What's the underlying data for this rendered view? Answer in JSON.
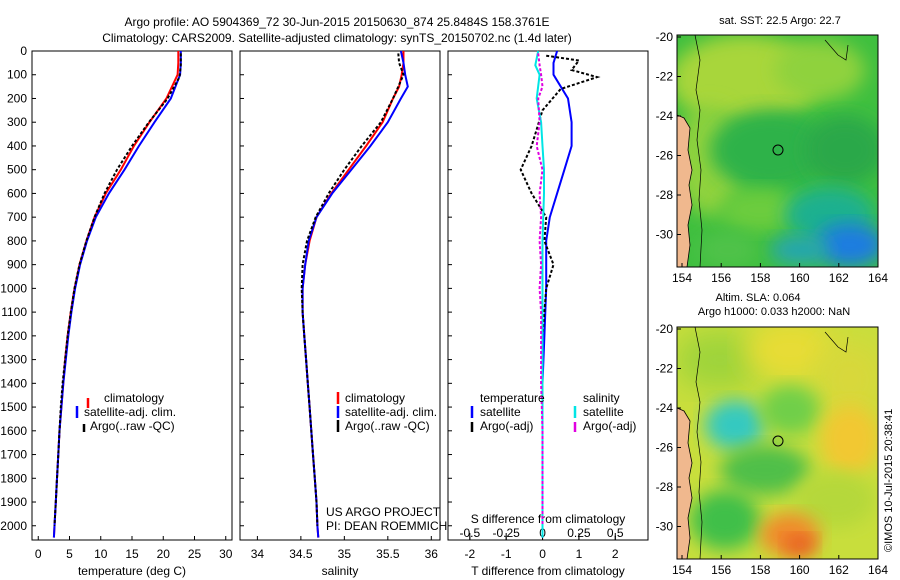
{
  "header": {
    "line1": "Argo profile: AO 5904369_72 30-Jun-2015 20150630_874 25.8484S 158.3761E",
    "line2": "Climatology: CARS2009. Satellite-adjusted climatology: synTS_20150702.nc (1.4d later)"
  },
  "colors": {
    "clim": "#ff0000",
    "sat": "#0000ff",
    "argo": "#000000",
    "sat_s": "#00e5e5",
    "argo_s": "#e000e0"
  },
  "chart_data": [
    {
      "type": "line",
      "id": "temperature",
      "xlabel": "temperature (deg C)",
      "ylabel": "",
      "xlim": [
        -1,
        31
      ],
      "ylim": [
        2060,
        0
      ],
      "xticks": [
        "0",
        "5",
        "10",
        "15",
        "20",
        "25",
        "30"
      ],
      "yticks": [
        "0",
        "100",
        "200",
        "300",
        "400",
        "500",
        "600",
        "700",
        "800",
        "900",
        "1000",
        "1100",
        "1200",
        "1300",
        "1400",
        "1500",
        "1600",
        "1700",
        "1800",
        "1900",
        "2000"
      ],
      "legend": [
        "climatology",
        "satellite-adj. clim.",
        "Argo(..raw -QC)"
      ],
      "series": [
        {
          "name": "climatology",
          "color_key": "clim",
          "points": [
            [
              22.4,
              0
            ],
            [
              22.4,
              50
            ],
            [
              22.3,
              100
            ],
            [
              20.5,
              200
            ],
            [
              17.8,
              300
            ],
            [
              15.3,
              400
            ],
            [
              13.2,
              500
            ],
            [
              10.8,
              600
            ],
            [
              9.0,
              700
            ],
            [
              7.7,
              800
            ],
            [
              6.6,
              900
            ],
            [
              5.8,
              1000
            ],
            [
              5.2,
              1100
            ],
            [
              4.7,
              1200
            ],
            [
              4.3,
              1300
            ],
            [
              4.0,
              1400
            ],
            [
              3.7,
              1500
            ],
            [
              3.4,
              1600
            ],
            [
              3.2,
              1700
            ],
            [
              3.0,
              1800
            ],
            [
              2.8,
              1900
            ],
            [
              2.6,
              2000
            ],
            [
              2.5,
              2050
            ]
          ]
        },
        {
          "name": "satellite-adj. clim.",
          "color_key": "sat",
          "points": [
            [
              22.8,
              0
            ],
            [
              22.8,
              50
            ],
            [
              22.7,
              100
            ],
            [
              21.2,
              200
            ],
            [
              18.6,
              300
            ],
            [
              16.1,
              400
            ],
            [
              13.8,
              500
            ],
            [
              11.3,
              600
            ],
            [
              9.2,
              700
            ],
            [
              7.8,
              800
            ],
            [
              6.7,
              900
            ],
            [
              5.9,
              1000
            ],
            [
              5.3,
              1100
            ],
            [
              4.8,
              1200
            ],
            [
              4.4,
              1300
            ],
            [
              4.0,
              1400
            ],
            [
              3.7,
              1500
            ],
            [
              3.4,
              1600
            ],
            [
              3.2,
              1700
            ],
            [
              3.0,
              1800
            ],
            [
              2.8,
              1900
            ],
            [
              2.6,
              2000
            ],
            [
              2.5,
              2050
            ]
          ]
        },
        {
          "name": "Argo(..raw -QC)",
          "color_key": "argo",
          "points": [
            [
              22.8,
              10
            ],
            [
              22.8,
              60
            ],
            [
              22.6,
              110
            ],
            [
              20.7,
              200
            ],
            [
              17.7,
              300
            ],
            [
              15.0,
              400
            ],
            [
              12.6,
              500
            ],
            [
              10.6,
              600
            ],
            [
              9.0,
              700
            ],
            [
              7.7,
              800
            ],
            [
              6.6,
              900
            ],
            [
              5.8,
              1000
            ],
            [
              5.2,
              1100
            ],
            [
              4.7,
              1200
            ],
            [
              4.3,
              1300
            ],
            [
              3.9,
              1400
            ],
            [
              3.6,
              1500
            ],
            [
              3.4,
              1600
            ],
            [
              3.2,
              1700
            ],
            [
              3.0,
              1800
            ],
            [
              2.8,
              1900
            ],
            [
              2.6,
              2000
            ]
          ]
        }
      ]
    },
    {
      "type": "line",
      "id": "salinity",
      "xlabel": "salinity",
      "xlim": [
        33.8,
        36.1
      ],
      "ylim": [
        2060,
        0
      ],
      "xticks": [
        "34",
        "34.5",
        "35",
        "35.5",
        "36"
      ],
      "legend": [
        "climatology",
        "satellite-adj. clim.",
        "Argo(..raw -QC)"
      ],
      "series": [
        {
          "name": "climatology",
          "color_key": "clim",
          "points": [
            [
              35.68,
              0
            ],
            [
              35.68,
              50
            ],
            [
              35.66,
              100
            ],
            [
              35.63,
              150
            ],
            [
              35.56,
              200
            ],
            [
              35.44,
              300
            ],
            [
              35.25,
              400
            ],
            [
              35.05,
              500
            ],
            [
              34.85,
              600
            ],
            [
              34.68,
              700
            ],
            [
              34.6,
              800
            ],
            [
              34.55,
              900
            ],
            [
              34.52,
              1000
            ],
            [
              34.52,
              1100
            ],
            [
              34.54,
              1200
            ],
            [
              34.56,
              1300
            ],
            [
              34.58,
              1400
            ],
            [
              34.6,
              1500
            ],
            [
              34.62,
              1600
            ],
            [
              34.64,
              1700
            ],
            [
              34.66,
              1800
            ],
            [
              34.68,
              1900
            ],
            [
              34.69,
              2000
            ],
            [
              34.7,
              2050
            ]
          ]
        },
        {
          "name": "satellite-adj. clim.",
          "color_key": "sat",
          "points": [
            [
              35.65,
              0
            ],
            [
              35.68,
              50
            ],
            [
              35.7,
              100
            ],
            [
              35.73,
              150
            ],
            [
              35.65,
              200
            ],
            [
              35.5,
              300
            ],
            [
              35.3,
              400
            ],
            [
              35.08,
              500
            ],
            [
              34.86,
              600
            ],
            [
              34.68,
              700
            ],
            [
              34.59,
              800
            ],
            [
              34.55,
              900
            ],
            [
              34.52,
              1000
            ],
            [
              34.52,
              1100
            ],
            [
              34.54,
              1200
            ],
            [
              34.56,
              1300
            ],
            [
              34.58,
              1400
            ],
            [
              34.6,
              1500
            ],
            [
              34.62,
              1600
            ],
            [
              34.64,
              1700
            ],
            [
              34.66,
              1800
            ],
            [
              34.68,
              1900
            ],
            [
              34.69,
              2000
            ],
            [
              34.7,
              2050
            ]
          ]
        },
        {
          "name": "Argo(..raw -QC)",
          "color_key": "argo",
          "points": [
            [
              35.62,
              10
            ],
            [
              35.63,
              50
            ],
            [
              35.68,
              100
            ],
            [
              35.62,
              150
            ],
            [
              35.56,
              200
            ],
            [
              35.42,
              300
            ],
            [
              35.2,
              400
            ],
            [
              35.0,
              500
            ],
            [
              34.82,
              600
            ],
            [
              34.67,
              700
            ],
            [
              34.57,
              800
            ],
            [
              34.52,
              900
            ],
            [
              34.51,
              1000
            ],
            [
              34.52,
              1100
            ],
            [
              34.54,
              1200
            ],
            [
              34.56,
              1300
            ],
            [
              34.58,
              1400
            ],
            [
              34.6,
              1500
            ],
            [
              34.62,
              1600
            ],
            [
              34.64,
              1700
            ],
            [
              34.66,
              1800
            ],
            [
              34.68,
              1900
            ],
            [
              34.69,
              2000
            ]
          ]
        }
      ],
      "annotation": [
        "US ARGO PROJECT",
        "PI: DEAN ROEMMICH"
      ]
    },
    {
      "type": "line",
      "id": "difference",
      "xlabel": "T difference from climatology",
      "xlabel_top": "S difference from climatology",
      "xlim": [
        -2.6,
        2.9
      ],
      "ylim": [
        2060,
        0
      ],
      "xticks": [
        "-2",
        "-1",
        "0",
        "1",
        "2"
      ],
      "xticks_top": [
        "-0.5",
        "-0.25",
        "0",
        "0.25",
        "0.5"
      ],
      "legend_titles": [
        "temperature",
        "salinity"
      ],
      "legend": [
        "satellite",
        "Argo(-adj)",
        "satellite",
        "Argo(-adj)"
      ],
      "series": [
        {
          "name": "T satellite",
          "color_key": "sat",
          "points": [
            [
              0.4,
              0
            ],
            [
              0.3,
              50
            ],
            [
              0.3,
              100
            ],
            [
              0.7,
              200
            ],
            [
              0.8,
              300
            ],
            [
              0.8,
              400
            ],
            [
              0.6,
              500
            ],
            [
              0.4,
              600
            ],
            [
              0.2,
              700
            ],
            [
              0.1,
              800
            ],
            [
              0.1,
              900
            ],
            [
              0.1,
              1000
            ],
            [
              0.05,
              1200
            ],
            [
              0.0,
              1400
            ],
            [
              0.0,
              1600
            ],
            [
              0.0,
              2050
            ]
          ]
        },
        {
          "name": "T Argo(-adj)",
          "color_key": "argo",
          "points": [
            [
              0.1,
              20
            ],
            [
              1.0,
              40
            ],
            [
              0.8,
              80
            ],
            [
              1.5,
              110
            ],
            [
              0.5,
              160
            ],
            [
              0.0,
              250
            ],
            [
              -0.1,
              300
            ],
            [
              -0.3,
              400
            ],
            [
              -0.6,
              500
            ],
            [
              -0.3,
              600
            ],
            [
              0.1,
              700
            ],
            [
              0.05,
              800
            ],
            [
              0.3,
              900
            ],
            [
              0.1,
              1000
            ],
            [
              0.05,
              1100
            ],
            [
              0.0,
              1200
            ],
            [
              0.0,
              1400
            ],
            [
              0.0,
              1600
            ],
            [
              0.0,
              2000
            ]
          ]
        },
        {
          "name": "S satellite",
          "color_key": "sat_s",
          "points": [
            [
              -0.03,
              0
            ],
            [
              -0.05,
              60
            ],
            [
              -0.02,
              100
            ],
            [
              -0.04,
              200
            ],
            [
              -0.01,
              300
            ],
            [
              0.0,
              400
            ],
            [
              0.01,
              500
            ],
            [
              0.01,
              600
            ],
            [
              0.0,
              800
            ],
            [
              0.0,
              1200
            ],
            [
              0.0,
              1600
            ],
            [
              0.0,
              2050
            ]
          ]
        },
        {
          "name": "S Argo(-adj)",
          "color_key": "argo_s",
          "points": [
            [
              -0.03,
              10
            ],
            [
              -0.02,
              60
            ],
            [
              -0.01,
              100
            ],
            [
              0.0,
              150
            ],
            [
              -0.03,
              200
            ],
            [
              -0.02,
              300
            ],
            [
              -0.04,
              400
            ],
            [
              0.0,
              500
            ],
            [
              -0.02,
              600
            ],
            [
              -0.01,
              700
            ],
            [
              -0.02,
              800
            ],
            [
              -0.01,
              900
            ],
            [
              -0.02,
              1000
            ],
            [
              -0.01,
              1100
            ],
            [
              -0.01,
              1200
            ],
            [
              -0.01,
              1400
            ],
            [
              0.0,
              1600
            ],
            [
              0.0,
              2000
            ]
          ]
        }
      ]
    },
    {
      "type": "heatmap",
      "id": "sst-map",
      "title": "sat. SST: 22.5 Argo: 22.7",
      "xticks": [
        "154",
        "156",
        "158",
        "160",
        "162",
        "164"
      ],
      "yticks": [
        "-20",
        "-22",
        "-24",
        "-26",
        "-28",
        "-30"
      ]
    },
    {
      "type": "heatmap",
      "id": "sla-map",
      "title": "Altim. SLA: 0.064",
      "subtitle": "Argo h1000: 0.033 h2000: NaN",
      "xticks": [
        "154",
        "156",
        "158",
        "160",
        "162",
        "164"
      ],
      "yticks": [
        "-20",
        "-22",
        "-24",
        "-26",
        "-28",
        "-30"
      ]
    }
  ],
  "footer": {
    "credit": "©IMOS 10-Jul-2015 20:38:41"
  }
}
